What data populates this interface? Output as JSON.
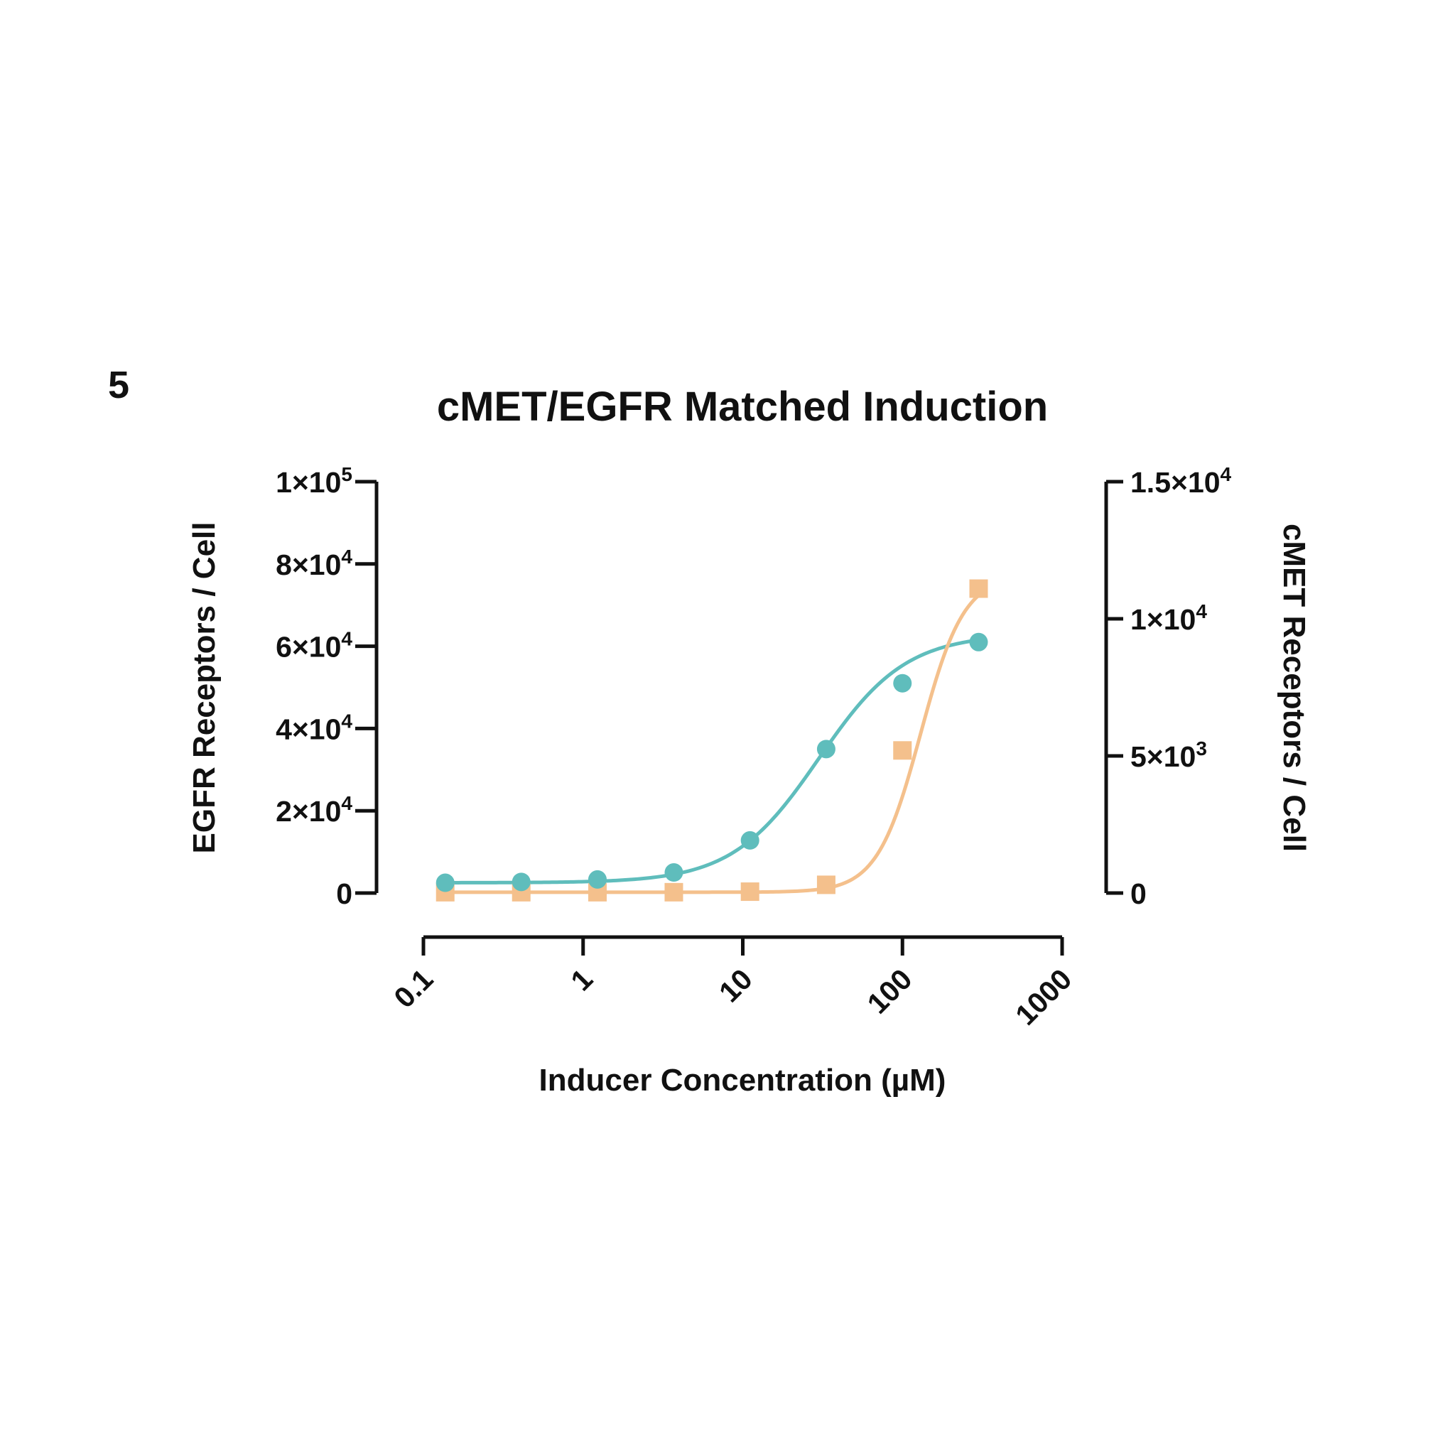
{
  "panel_label": "5",
  "chart_data": {
    "type": "scatter",
    "title": "cMET/EGFR Matched Induction",
    "xlabel": "Inducer Concentration (µM)",
    "ylabel_left": "EGFR Receptors / Cell",
    "ylabel_right": "cMET Receptors / Cell",
    "x_scale": "log",
    "xlim": [
      0.1,
      1000
    ],
    "x_ticks": [
      0.1,
      1,
      10,
      100,
      1000
    ],
    "x_tick_labels": [
      "0.1",
      "1",
      "10",
      "100",
      "1000"
    ],
    "ylim_left": [
      0,
      100000
    ],
    "y_ticks_left": [
      0,
      20000,
      40000,
      60000,
      80000,
      100000
    ],
    "y_tick_labels_left": [
      {
        "base": "0",
        "exp": ""
      },
      {
        "base": "2×10",
        "exp": "4"
      },
      {
        "base": "4×10",
        "exp": "4"
      },
      {
        "base": "6×10",
        "exp": "4"
      },
      {
        "base": "8×10",
        "exp": "4"
      },
      {
        "base": "1×10",
        "exp": "5"
      }
    ],
    "ylim_right": [
      0,
      15000
    ],
    "y_ticks_right": [
      0,
      5000,
      10000,
      15000
    ],
    "y_tick_labels_right": [
      {
        "base": "0",
        "exp": ""
      },
      {
        "base": "5×10",
        "exp": "3"
      },
      {
        "base": "1×10",
        "exp": "4"
      },
      {
        "base": "1.5×10",
        "exp": "4"
      }
    ],
    "x": [
      0.137,
      0.41,
      1.23,
      3.7,
      11.1,
      33.3,
      100,
      300
    ],
    "series": [
      {
        "axis": "left",
        "marker": "circle",
        "color": "#5fbdbc",
        "values": [
          2500,
          2700,
          3300,
          5000,
          12800,
          35000,
          51000,
          61000
        ],
        "fit": {
          "bottom": 2500,
          "top": 63000,
          "ec50": 30,
          "hill": 1.6
        }
      },
      {
        "axis": "right",
        "marker": "square",
        "color": "#f4c08c",
        "values": [
          30,
          30,
          30,
          30,
          50,
          300,
          5200,
          11100
        ],
        "fit": {
          "bottom": 30,
          "top": 11600,
          "ec50": 130,
          "hill": 3.2
        }
      }
    ],
    "grid": false,
    "legend": "none"
  }
}
